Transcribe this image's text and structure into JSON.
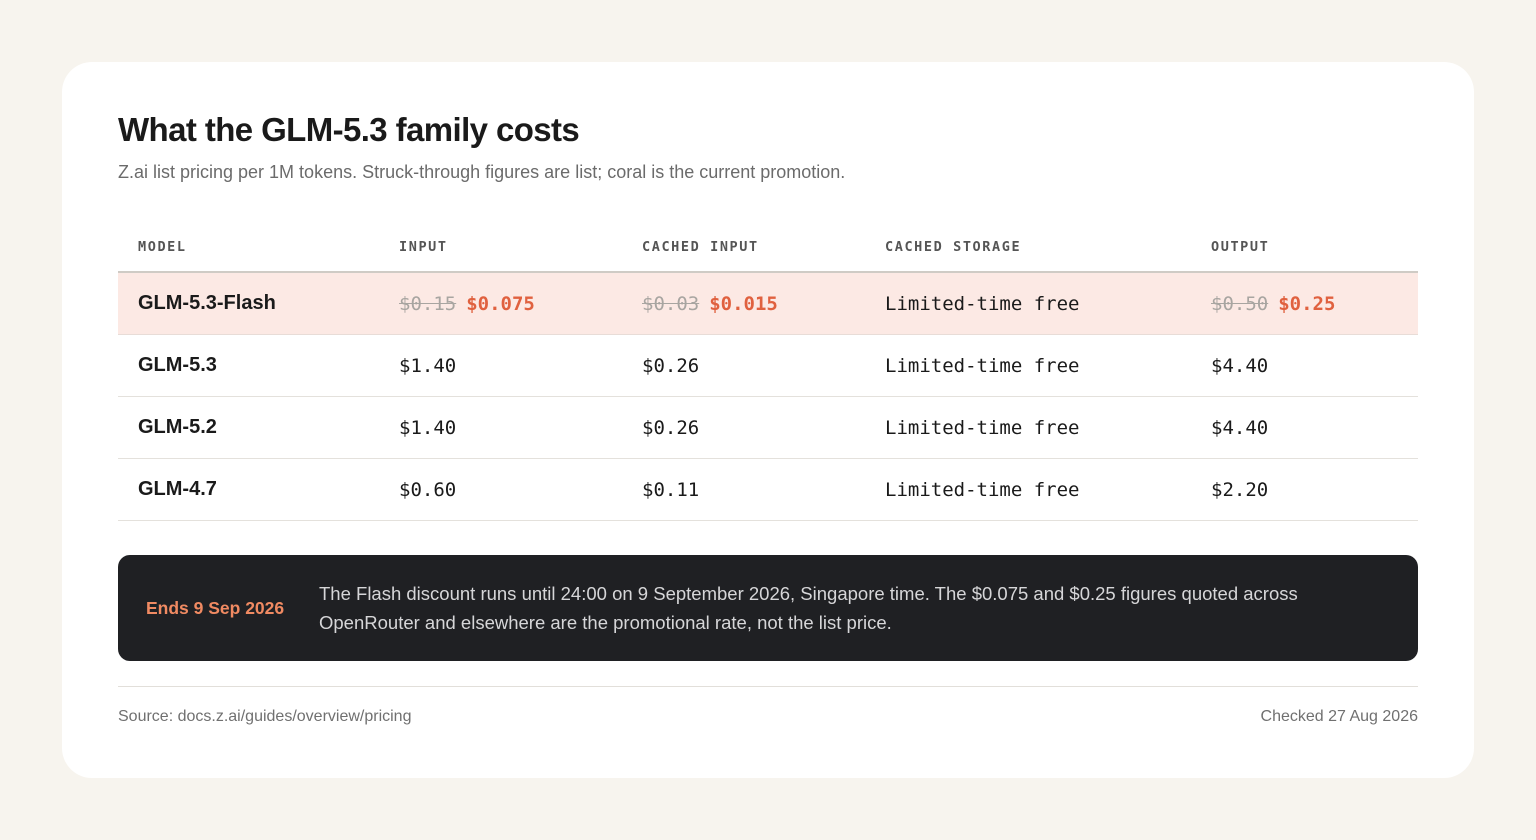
{
  "header": {
    "title": "What the GLM-5.3 family costs",
    "subtitle": "Z.ai list pricing per 1M tokens. Struck-through figures are list; coral is the current promotion."
  },
  "table": {
    "columns": [
      "MODEL",
      "INPUT",
      "CACHED INPUT",
      "CACHED STORAGE",
      "OUTPUT"
    ],
    "rows": [
      {
        "model": "GLM-5.3-Flash",
        "highlighted": true,
        "input_list": "$0.15",
        "input": "$0.075",
        "cached_input_list": "$0.03",
        "cached_input": "$0.015",
        "cached_storage": "Limited-time free",
        "output_list": "$0.50",
        "output": "$0.25"
      },
      {
        "model": "GLM-5.3",
        "input": "$1.40",
        "cached_input": "$0.26",
        "cached_storage": "Limited-time free",
        "output": "$4.40"
      },
      {
        "model": "GLM-5.2",
        "input": "$1.40",
        "cached_input": "$0.26",
        "cached_storage": "Limited-time free",
        "output": "$4.40"
      },
      {
        "model": "GLM-4.7",
        "input": "$0.60",
        "cached_input": "$0.11",
        "cached_storage": "Limited-time free",
        "output": "$2.20"
      }
    ]
  },
  "notice": {
    "tag": "Ends 9 Sep 2026",
    "text": "The Flash discount runs until 24:00 on 9 September 2026, Singapore time. The $0.075 and $0.25 figures quoted across OpenRouter and elsewhere are the promotional rate, not the list price."
  },
  "footer": {
    "source": "Source: docs.z.ai/guides/overview/pricing",
    "checked": "Checked 27 Aug 2026"
  },
  "colors": {
    "background": "#f7f4ee",
    "promo": "#e0613f",
    "highlight_row": "#fce9e4",
    "notice_bg": "#1f2023"
  }
}
